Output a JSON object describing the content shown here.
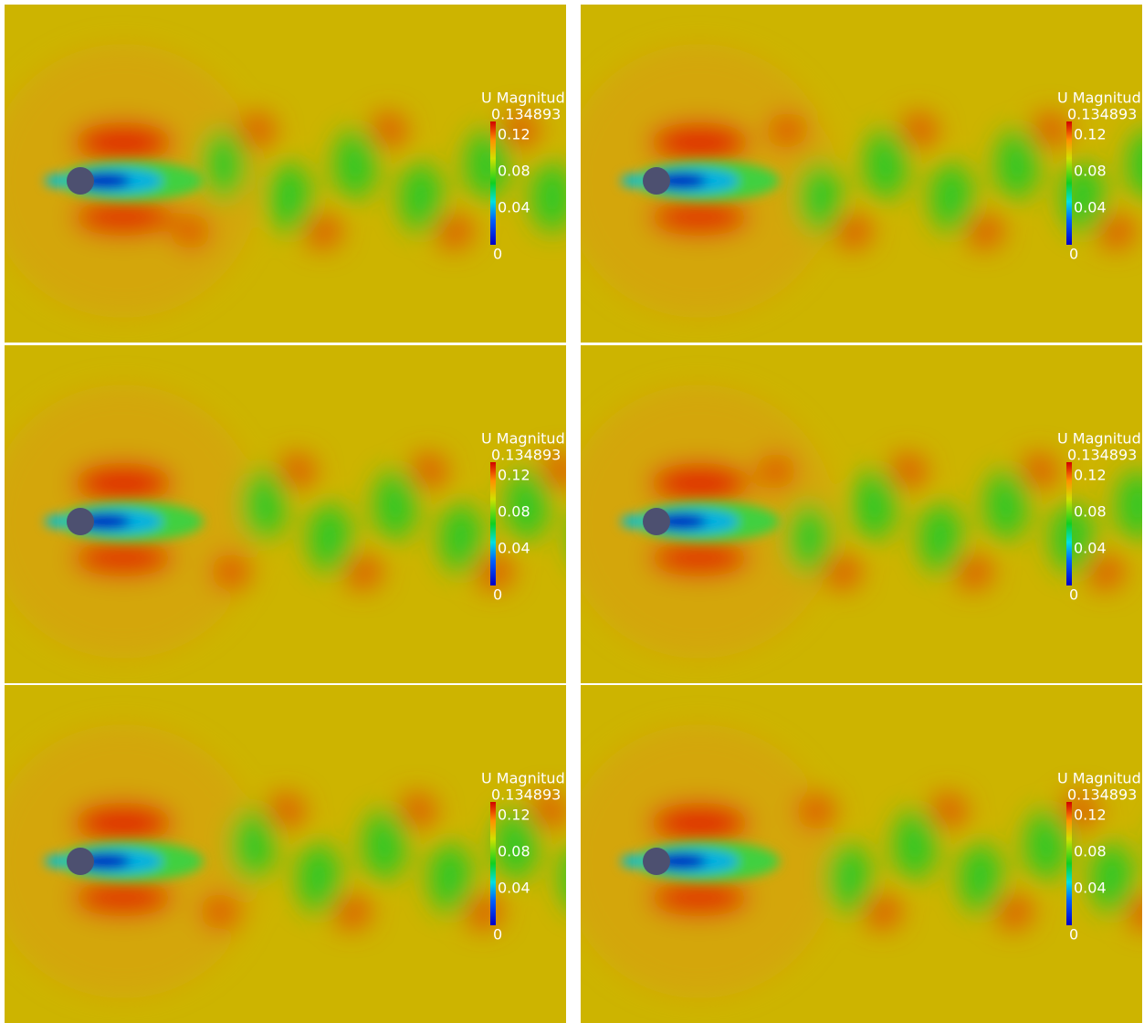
{
  "panels": [
    {
      "colorbar": {
        "title": "U Magnitud",
        "max": 0.134893,
        "ticks": [
          0.12,
          0.08,
          0.04
        ],
        "min": 0
      }
    },
    {
      "colorbar": {
        "title": "U Magnitud",
        "max": 0.134893,
        "ticks": [
          0.12,
          0.08,
          0.04
        ],
        "min": 0
      }
    },
    {
      "colorbar": {
        "title": "U Magnitud",
        "max": 0.134893,
        "ticks": [
          0.12,
          0.08,
          0.04
        ],
        "min": 0
      }
    },
    {
      "colorbar": {
        "title": "U Magnitud",
        "max": 0.134893,
        "ticks": [
          0.12,
          0.08,
          0.04
        ],
        "min": 0
      }
    },
    {
      "colorbar": {
        "title": "U Magnitud",
        "max": 0.134893,
        "ticks": [
          0.12,
          0.08,
          0.04
        ],
        "min": 0
      }
    },
    {
      "colorbar": {
        "title": "U Magnitud",
        "max": 0.134893,
        "ticks": [
          0.12,
          0.08,
          0.04
        ],
        "min": 0
      }
    }
  ]
}
